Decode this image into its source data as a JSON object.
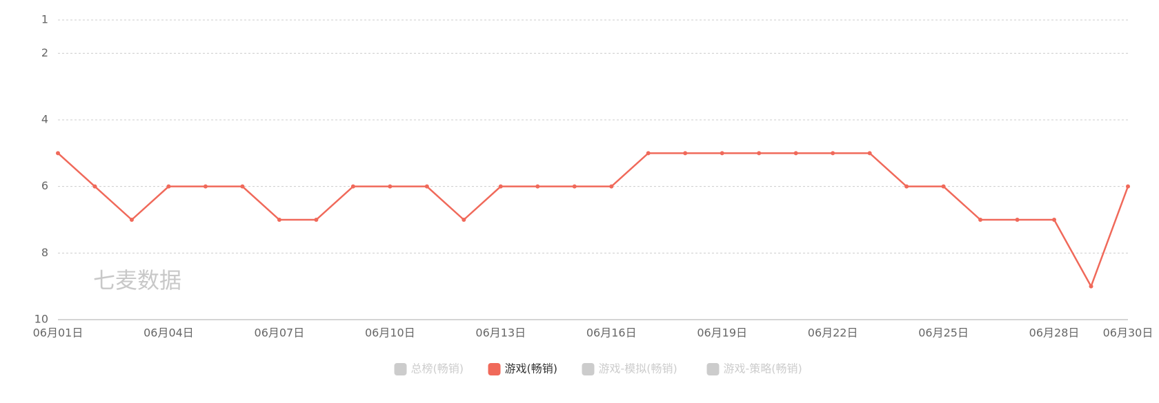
{
  "chart_data": {
    "type": "line",
    "categories": [
      "06月01日",
      null,
      null,
      "06月04日",
      null,
      null,
      "06月07日",
      null,
      null,
      "06月10日",
      null,
      null,
      "06月13日",
      null,
      null,
      "06月16日",
      null,
      null,
      "06月19日",
      null,
      null,
      "06月22日",
      null,
      null,
      "06月25日",
      null,
      null,
      "06月28日",
      null,
      "06月30日"
    ],
    "series": [
      {
        "name": "游戏(畅销)",
        "color": "#f0695a",
        "values": [
          5,
          6,
          7,
          6,
          6,
          6,
          7,
          7,
          6,
          6,
          6,
          7,
          6,
          6,
          6,
          6,
          5,
          5,
          5,
          5,
          5,
          5,
          5,
          6,
          6,
          7,
          7,
          7,
          9,
          6
        ]
      }
    ],
    "legend": [
      {
        "name": "总榜(畅销)",
        "color": "#cccccc",
        "active": false
      },
      {
        "name": "游戏(畅销)",
        "color": "#f0695a",
        "active": true
      },
      {
        "name": "游戏-模拟(畅销)",
        "color": "#cccccc",
        "active": false
      },
      {
        "name": "游戏-策略(畅销)",
        "color": "#cccccc",
        "active": false
      }
    ],
    "ylim": [
      1,
      10
    ],
    "yticks": [
      1,
      2,
      4,
      6,
      8,
      10
    ],
    "y_inverted": true,
    "grid": true,
    "watermark": "七麦数据"
  }
}
